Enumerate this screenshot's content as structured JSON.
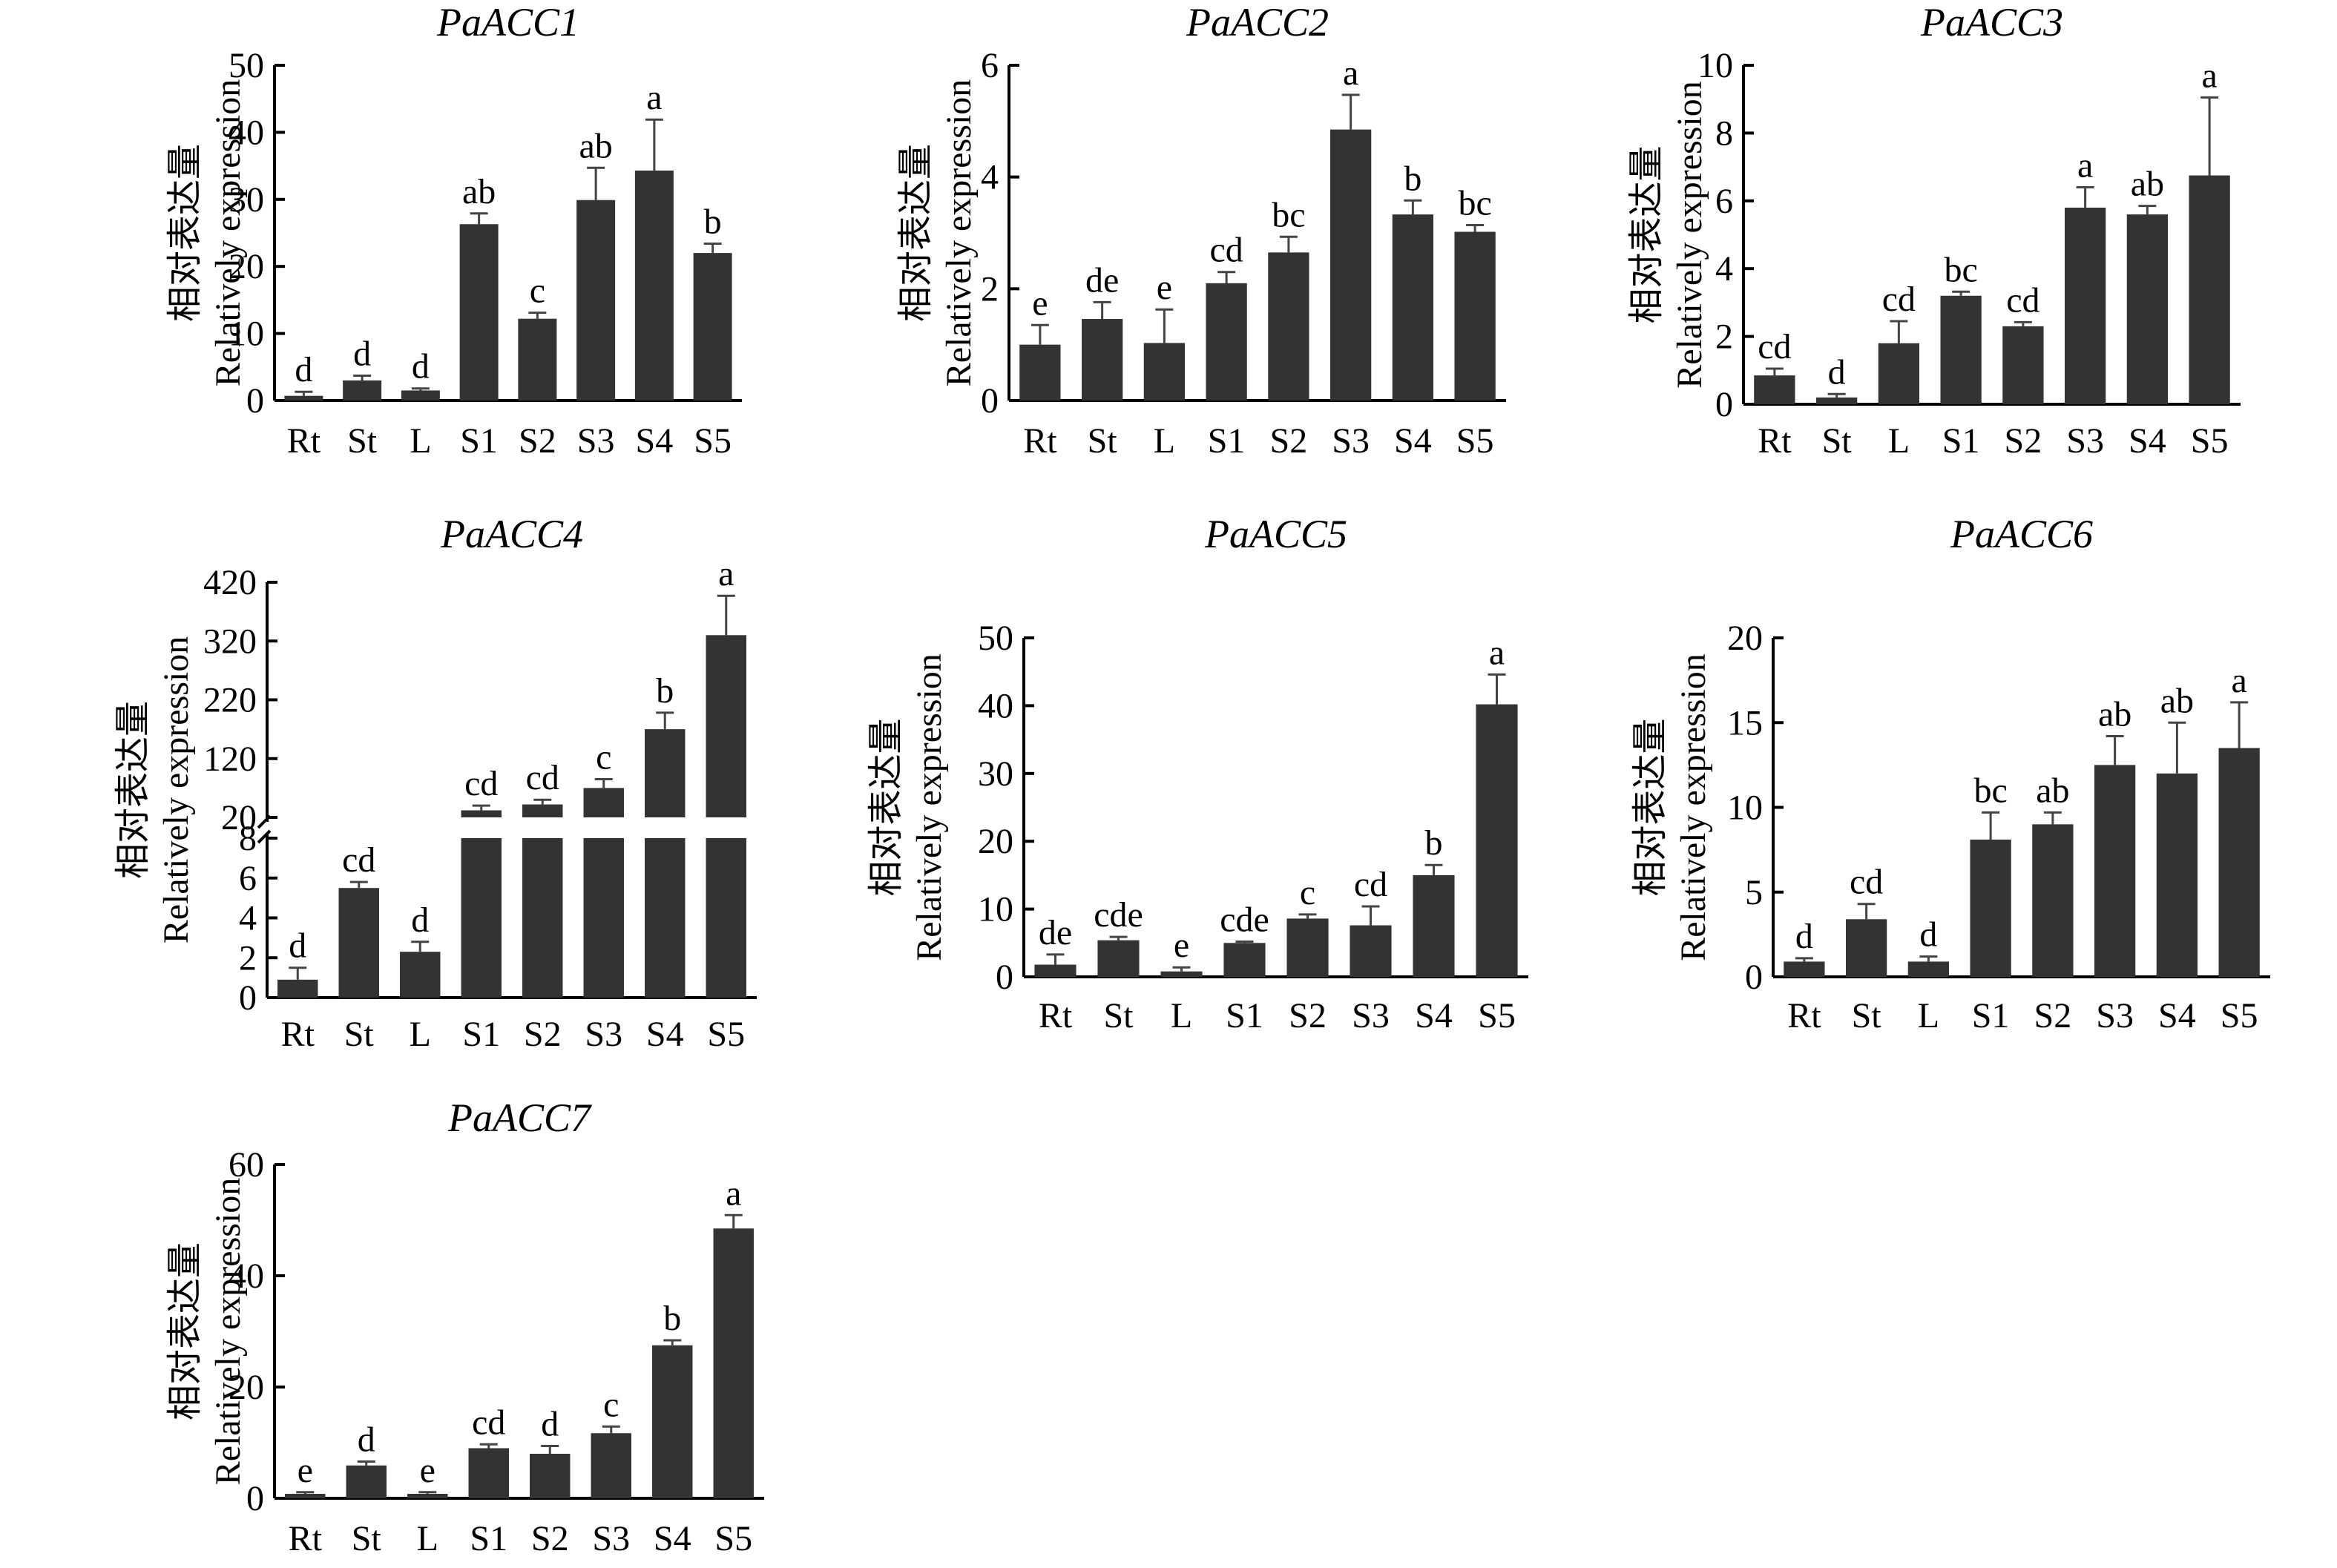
{
  "figure": {
    "y_label_cn": "相对表达量",
    "y_label_en": "Relatively expression",
    "categories": [
      "Rt",
      "St",
      "L",
      "S1",
      "S2",
      "S3",
      "S4",
      "S5"
    ]
  },
  "chart_data": [
    {
      "type": "bar",
      "title": "PaACC1",
      "categories": [
        "Rt",
        "St",
        "L",
        "S1",
        "S2",
        "S3",
        "S4",
        "S5"
      ],
      "values": [
        0.7,
        3.0,
        1.5,
        26.3,
        12.2,
        29.9,
        34.3,
        22.0
      ],
      "errors": [
        0.6,
        0.7,
        0.3,
        1.6,
        0.9,
        4.8,
        7.6,
        1.4
      ],
      "letters": [
        "d",
        "d",
        "d",
        "ab",
        "c",
        "ab",
        "a",
        "b"
      ],
      "ylim": [
        0,
        50
      ],
      "yticks": [
        0,
        10,
        20,
        30,
        40,
        50
      ],
      "ylabel": "相对表达量 Relatively expression"
    },
    {
      "type": "bar",
      "title": "PaACC2",
      "categories": [
        "Rt",
        "St",
        "L",
        "S1",
        "S2",
        "S3",
        "S4",
        "S5"
      ],
      "values": [
        1.0,
        1.46,
        1.03,
        2.1,
        2.65,
        4.85,
        3.33,
        3.02
      ],
      "errors": [
        0.35,
        0.3,
        0.6,
        0.2,
        0.28,
        0.62,
        0.25,
        0.12
      ],
      "letters": [
        "e",
        "de",
        "e",
        "cd",
        "bc",
        "a",
        "b",
        "bc"
      ],
      "ylim": [
        0,
        6
      ],
      "yticks": [
        0,
        2,
        4,
        6
      ],
      "ylabel": "相对表达量 Relatively expression"
    },
    {
      "type": "bar",
      "title": "PaACC3",
      "categories": [
        "Rt",
        "St",
        "L",
        "S1",
        "S2",
        "S3",
        "S4",
        "S5"
      ],
      "values": [
        0.85,
        0.2,
        1.8,
        3.2,
        2.3,
        5.8,
        5.6,
        6.75
      ],
      "errors": [
        0.2,
        0.1,
        0.65,
        0.12,
        0.12,
        0.6,
        0.25,
        2.3
      ],
      "letters": [
        "cd",
        "d",
        "cd",
        "bc",
        "cd",
        "a",
        "ab",
        "a"
      ],
      "ylim": [
        0,
        10
      ],
      "yticks": [
        0,
        2,
        4,
        6,
        8,
        10
      ],
      "ylabel": "相对表达量 Relatively expression"
    },
    {
      "type": "bar",
      "title": "PaACC4",
      "categories": [
        "Rt",
        "St",
        "L",
        "S1",
        "S2",
        "S3",
        "S4",
        "S5"
      ],
      "values": [
        0.9,
        5.5,
        2.3,
        32,
        42,
        70,
        170,
        330
      ],
      "errors": [
        0.6,
        0.3,
        0.5,
        8,
        8,
        15,
        28,
        67
      ],
      "letters": [
        "d",
        "cd",
        "d",
        "cd",
        "cd",
        "c",
        "b",
        "a"
      ],
      "axis_break": true,
      "lower_ylim": [
        0,
        8
      ],
      "lower_yticks": [
        0,
        2,
        4,
        6,
        8
      ],
      "upper_ylim": [
        20,
        420
      ],
      "upper_yticks": [
        20,
        120,
        220,
        320,
        420
      ],
      "ylabel": "相对表达量 Relatively expression"
    },
    {
      "type": "bar",
      "title": "PaACC5",
      "categories": [
        "Rt",
        "St",
        "L",
        "S1",
        "S2",
        "S3",
        "S4",
        "S5"
      ],
      "values": [
        1.8,
        5.4,
        0.8,
        5.0,
        8.6,
        7.6,
        15.0,
        40.2
      ],
      "errors": [
        1.5,
        0.5,
        0.6,
        0.2,
        0.6,
        2.8,
        1.5,
        4.4
      ],
      "letters": [
        "de",
        "cde",
        "e",
        "cde",
        "c",
        "cd",
        "b",
        "a"
      ],
      "ylim": [
        0,
        50
      ],
      "yticks": [
        0,
        10,
        20,
        30,
        40,
        50
      ],
      "ylabel": "相对表达量 Relatively expression"
    },
    {
      "type": "bar",
      "title": "PaACC6",
      "categories": [
        "Rt",
        "St",
        "L",
        "S1",
        "S2",
        "S3",
        "S4",
        "S5"
      ],
      "values": [
        0.9,
        3.4,
        0.9,
        8.1,
        9.0,
        12.5,
        12.0,
        13.5
      ],
      "errors": [
        0.2,
        0.9,
        0.3,
        1.6,
        0.7,
        1.7,
        3.0,
        2.7
      ],
      "letters": [
        "d",
        "cd",
        "d",
        "bc",
        "ab",
        "ab",
        "ab",
        "a"
      ],
      "ylim": [
        0,
        20
      ],
      "yticks": [
        0,
        5,
        10,
        15,
        20
      ],
      "ylabel": "相对表达量 Relatively expression"
    },
    {
      "type": "bar",
      "title": "PaACC7",
      "categories": [
        "Rt",
        "St",
        "L",
        "S1",
        "S2",
        "S3",
        "S4",
        "S5"
      ],
      "values": [
        0.8,
        5.9,
        0.8,
        9.0,
        8.0,
        11.7,
        27.5,
        48.5
      ],
      "errors": [
        0.3,
        0.7,
        0.3,
        0.7,
        1.4,
        1.2,
        0.9,
        2.4
      ],
      "letters": [
        "e",
        "d",
        "e",
        "cd",
        "d",
        "c",
        "b",
        "a"
      ],
      "ylim": [
        0,
        60
      ],
      "yticks": [
        0,
        20,
        40,
        60
      ],
      "ylabel": "相对表达量 Relatively expression"
    }
  ]
}
